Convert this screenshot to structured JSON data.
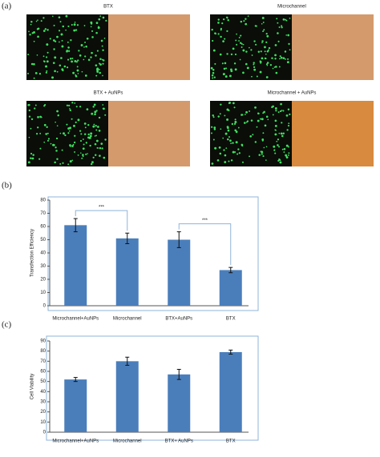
{
  "panel_labels": [
    "(a)",
    "(b)",
    "(c)"
  ],
  "images": [
    "BTX",
    "Microchannel",
    "BTX + AuNPs",
    "Microchannel + AuNPs"
  ],
  "chart_data": [
    {
      "type": "bar",
      "y_label": "Transfection Efficiency",
      "categories": [
        "Microchannel+AuNPs",
        "Microchannel",
        "BTX+AuNPs",
        "BTX"
      ],
      "values": [
        61,
        51,
        50,
        27
      ],
      "errors": [
        5,
        4,
        6,
        2
      ],
      "color": "#4a7ebb",
      "ylim": [
        0,
        80
      ],
      "yticks": [
        0,
        10,
        20,
        30,
        40,
        50,
        60,
        70,
        80
      ],
      "annotations": [
        "***",
        "***"
      ]
    },
    {
      "type": "bar",
      "y_label": "Cell Viability",
      "categories": [
        "Microchannel+AuNPs",
        "Microchannel",
        "BTX+ AuNPs",
        "BTX"
      ],
      "values": [
        52,
        70,
        57,
        79
      ],
      "errors": [
        2,
        4,
        5,
        2
      ],
      "color": "#4a7ebb",
      "ylim": [
        0,
        90
      ],
      "yticks": [
        0,
        10,
        20,
        30,
        40,
        50,
        60,
        70,
        80,
        90
      ]
    }
  ]
}
